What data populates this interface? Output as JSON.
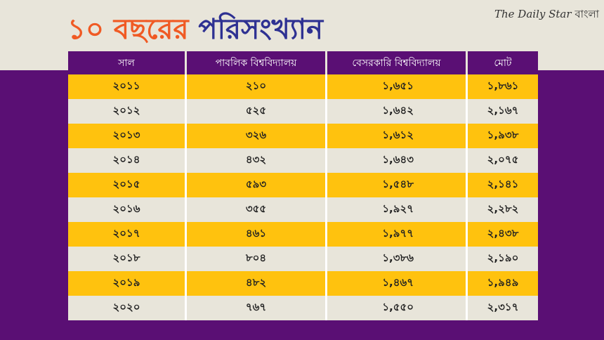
{
  "title_part1": "১০ বছরের",
  "title_part2": "পরিসংখ্যান",
  "brand": {
    "en": "The Daily Star",
    "bn": "বাংলা"
  },
  "colors": {
    "accent": "#f05a24",
    "title_blue": "#2e3192",
    "purple": "#5a0f74",
    "yellow": "#ffc20e",
    "grey": "#e8e5da"
  },
  "chart_data": {
    "type": "table",
    "columns": [
      "সাল",
      "পাবলিক বিশ্ববিদ্যালয়",
      "বেসরকারি বিশ্ববিদ্যালয়",
      "মোট"
    ],
    "rows": [
      [
        "২০১১",
        "২১০",
        "১,৬৫১",
        "১,৮৬১"
      ],
      [
        "২০১২",
        "৫২৫",
        "১,৬৪২",
        "২,১৬৭"
      ],
      [
        "২০১৩",
        "৩২৬",
        "১,৬১২",
        "১,৯৩৮"
      ],
      [
        "২০১৪",
        "৪৩২",
        "১,৬৪৩",
        "২,০৭৫"
      ],
      [
        "২০১৫",
        "৫৯৩",
        "১,৫৪৮",
        "২,১৪১"
      ],
      [
        "২০১৬",
        "৩৫৫",
        "১,৯২৭",
        "২,২৮২"
      ],
      [
        "২০১৭",
        "৪৬১",
        "১,৯৭৭",
        "২,৪৩৮"
      ],
      [
        "২০১৮",
        "৮০৪",
        "১,৩৮৬",
        "২,১৯০"
      ],
      [
        "২০১৯",
        "৪৮২",
        "১,৪৬৭",
        "১,৯৪৯"
      ],
      [
        "২০২০",
        "৭৬৭",
        "১,৫৫০",
        "২,৩১৭"
      ]
    ]
  }
}
